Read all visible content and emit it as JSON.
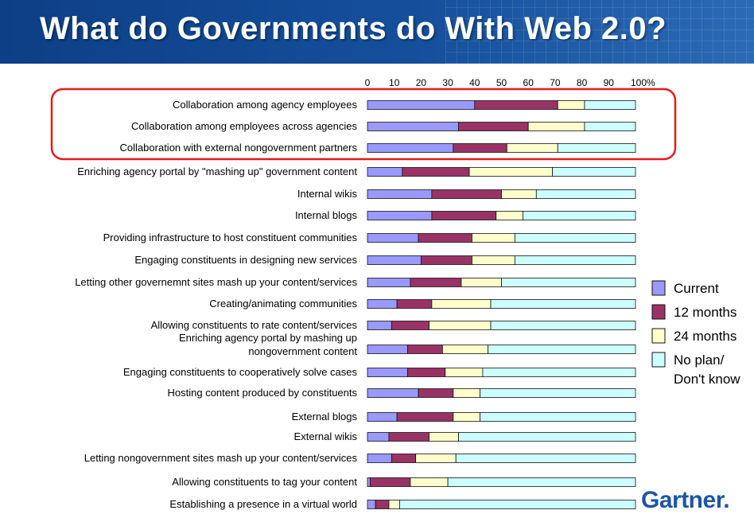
{
  "header": {
    "title": "What do Governments do With Web 2.0?"
  },
  "logo": {
    "text": "Gartner."
  },
  "colors": {
    "header": "#154f9b",
    "current": "#9999ff",
    "twelve_months": "#993366",
    "twentyfour_months": "#ffffcc",
    "no_plan": "#ccffff",
    "highlight": "#e21c1c"
  },
  "chart_data": {
    "type": "bar",
    "orientation": "horizontal",
    "stacked": true,
    "xlim": [
      0,
      100
    ],
    "x_ticks": [
      "0",
      "10",
      "20",
      "30",
      "40",
      "50",
      "60",
      "70",
      "80",
      "90",
      "100%"
    ],
    "legend_position": "right",
    "categories": [
      "Collaboration among agency employees",
      "Collaboration among employees across agencies",
      "Collaboration with external nongovernment partners",
      "Enriching agency portal by \"mashing up\" government content",
      "Internal wikis",
      "Internal blogs",
      "Providing infrastructure to host constituent communities",
      "Engaging constituents in designing new services",
      "Letting other governemnt sites mash up your content/services",
      "Creating/animating communities",
      "Allowing constituents to rate content/services",
      "Enriching agency portal by mashing up nongovernment content",
      "Engaging constituents to cooperatively solve cases",
      "Hosting content produced by constituents",
      "External blogs",
      "External wikis",
      "Letting nongovernment sites mash up your content/services",
      "Allowing constituents to tag your content",
      "Establishing a presence in a virtual world"
    ],
    "series": [
      {
        "name": "Current",
        "values": [
          40,
          34,
          32,
          13,
          24,
          24,
          19,
          20,
          16,
          11,
          9,
          15,
          15,
          19,
          11,
          8,
          9,
          1,
          3
        ]
      },
      {
        "name": "12 months",
        "values": [
          31,
          26,
          20,
          25,
          26,
          24,
          20,
          19,
          19,
          13,
          14,
          13,
          14,
          13,
          21,
          15,
          9,
          15,
          5
        ]
      },
      {
        "name": "24 months",
        "values": [
          10,
          21,
          19,
          31,
          13,
          10,
          16,
          16,
          15,
          22,
          23,
          17,
          14,
          10,
          10,
          11,
          15,
          14,
          4
        ]
      },
      {
        "name": "No plan/\nDon't know",
        "values": [
          19,
          19,
          29,
          31,
          37,
          42,
          45,
          45,
          50,
          54,
          54,
          55,
          57,
          58,
          58,
          66,
          67,
          70,
          88
        ]
      }
    ],
    "highlighted_categories": [
      0,
      1,
      2
    ]
  }
}
